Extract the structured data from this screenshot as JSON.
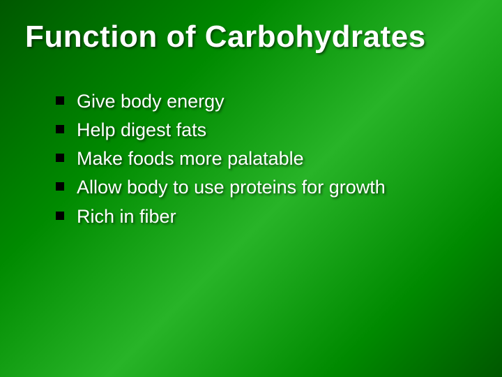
{
  "slide": {
    "title": "Function of Carbohydrates",
    "title_fontsize": 44,
    "title_color": "#ffffff",
    "title_font": "Arial Black",
    "bullets": [
      "Give body energy",
      "Help digest fats",
      "Make foods more palatable",
      "Allow body to use proteins for growth",
      "Rich in fiber"
    ],
    "bullet_fontsize": 27,
    "bullet_color": "#ffffff",
    "bullet_marker_color": "#000000",
    "bullet_marker_size": 12,
    "background_gradient": [
      "#005800",
      "#008a00",
      "#28b428",
      "#008a00",
      "#005800"
    ],
    "text_shadow": "2px 2px 3px rgba(0,0,0,0.55)"
  }
}
